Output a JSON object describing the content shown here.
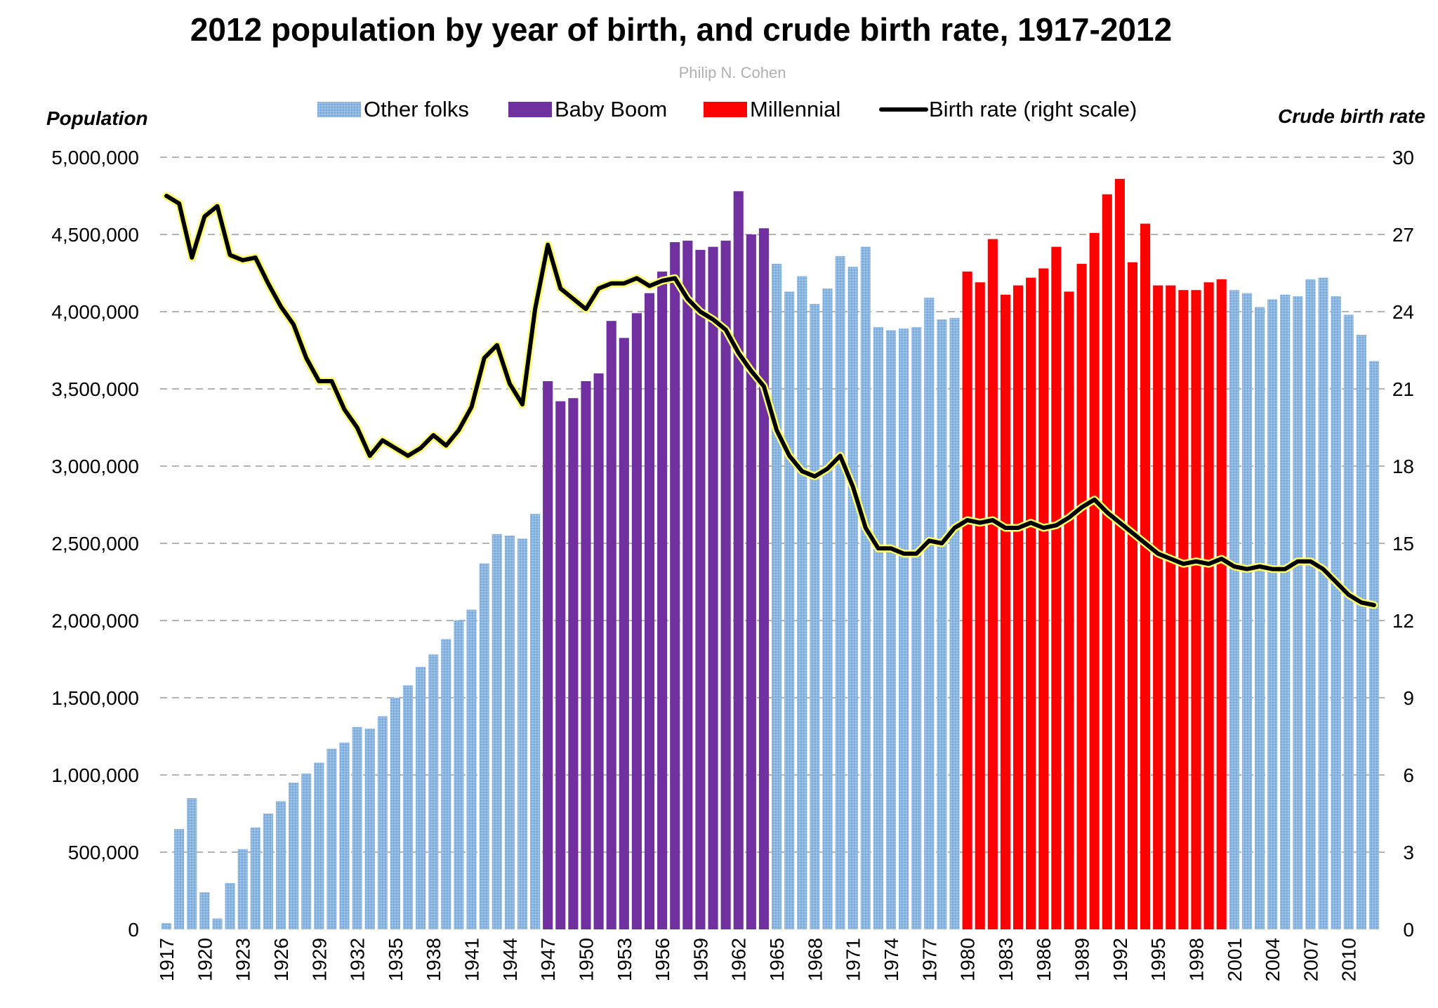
{
  "chart_data": {
    "type": "bar",
    "title": "2012 population by year of birth, and crude birth rate, 1917-2012",
    "subtitle": "Philip N. Cohen",
    "ylabel": "Population",
    "y2label": "Crude birth rate",
    "ylim": [
      0,
      5000000
    ],
    "y2lim": [
      0,
      30
    ],
    "yticks": [
      0,
      500000,
      1000000,
      1500000,
      2000000,
      2500000,
      3000000,
      3500000,
      4000000,
      4500000,
      5000000
    ],
    "ytick_labels": [
      "0",
      "500,000",
      "1,000,000",
      "1,500,000",
      "2,000,000",
      "2,500,000",
      "3,000,000",
      "3,500,000",
      "4,000,000",
      "4,500,000",
      "5,000,000"
    ],
    "y2ticks": [
      0,
      3,
      6,
      9,
      12,
      15,
      18,
      21,
      24,
      27,
      30
    ],
    "y2tick_labels": [
      "0",
      "3",
      "6",
      "9",
      "12",
      "15",
      "18",
      "21",
      "24",
      "27",
      "30"
    ],
    "grid": true,
    "legend_position": "top",
    "legend": [
      {
        "label": "Other folks",
        "kind": "bar",
        "color": "#8db8e2"
      },
      {
        "label": "Baby Boom",
        "kind": "bar",
        "color": "#7030a0"
      },
      {
        "label": "Millennial",
        "kind": "bar",
        "color": "#ff0000"
      },
      {
        "label": "Birth rate (right scale)",
        "kind": "line",
        "color": "#000000"
      }
    ],
    "group_colors": {
      "other": "#8db8e2",
      "boom": "#7030a0",
      "millennial": "#ff0000"
    },
    "years": [
      1917,
      1918,
      1919,
      1920,
      1921,
      1922,
      1923,
      1924,
      1925,
      1926,
      1927,
      1928,
      1929,
      1930,
      1931,
      1932,
      1933,
      1934,
      1935,
      1936,
      1937,
      1938,
      1939,
      1940,
      1941,
      1942,
      1943,
      1944,
      1945,
      1946,
      1947,
      1948,
      1949,
      1950,
      1951,
      1952,
      1953,
      1954,
      1955,
      1956,
      1957,
      1958,
      1959,
      1960,
      1961,
      1962,
      1963,
      1964,
      1965,
      1966,
      1967,
      1968,
      1969,
      1970,
      1971,
      1972,
      1973,
      1974,
      1975,
      1976,
      1977,
      1978,
      1979,
      1980,
      1981,
      1982,
      1983,
      1984,
      1985,
      1986,
      1987,
      1988,
      1989,
      1990,
      1991,
      1992,
      1993,
      1994,
      1995,
      1996,
      1997,
      1998,
      1999,
      2000,
      2001,
      2002,
      2003,
      2004,
      2005,
      2006,
      2007,
      2008,
      2009,
      2010,
      2011,
      2012
    ],
    "x_tick_labels": [
      "1917",
      "1920",
      "1923",
      "1926",
      "1929",
      "1932",
      "1935",
      "1938",
      "1941",
      "1944",
      "1947",
      "1950",
      "1953",
      "1956",
      "1959",
      "1962",
      "1965",
      "1968",
      "1971",
      "1974",
      "1977",
      "1980",
      "1983",
      "1986",
      "1989",
      "1992",
      "1995",
      "1998",
      "2001",
      "2004",
      "2007",
      "2010"
    ],
    "population": [
      40000,
      650000,
      850000,
      240000,
      70000,
      300000,
      520000,
      660000,
      750000,
      830000,
      950000,
      1010000,
      1080000,
      1170000,
      1210000,
      1310000,
      1300000,
      1380000,
      1500000,
      1580000,
      1700000,
      1780000,
      1880000,
      2000000,
      2070000,
      2370000,
      2560000,
      2550000,
      2530000,
      2690000,
      3550000,
      3420000,
      3440000,
      3550000,
      3600000,
      3940000,
      3830000,
      3990000,
      4120000,
      4260000,
      4450000,
      4460000,
      4400000,
      4420000,
      4460000,
      4780000,
      4500000,
      4540000,
      4310000,
      4130000,
      4230000,
      4050000,
      4150000,
      4360000,
      4290000,
      4420000,
      3900000,
      3880000,
      3890000,
      3900000,
      4090000,
      3950000,
      3960000,
      4260000,
      4190000,
      4470000,
      4110000,
      4170000,
      4220000,
      4280000,
      4420000,
      4130000,
      4310000,
      4510000,
      4760000,
      4860000,
      4320000,
      4570000,
      4170000,
      4170000,
      4140000,
      4140000,
      4190000,
      4210000,
      4140000,
      4120000,
      4030000,
      4080000,
      4110000,
      4100000,
      4210000,
      4220000,
      4100000,
      3980000,
      3850000,
      3680000
    ],
    "groups": [
      "other",
      "other",
      "other",
      "other",
      "other",
      "other",
      "other",
      "other",
      "other",
      "other",
      "other",
      "other",
      "other",
      "other",
      "other",
      "other",
      "other",
      "other",
      "other",
      "other",
      "other",
      "other",
      "other",
      "other",
      "other",
      "other",
      "other",
      "other",
      "other",
      "other",
      "boom",
      "boom",
      "boom",
      "boom",
      "boom",
      "boom",
      "boom",
      "boom",
      "boom",
      "boom",
      "boom",
      "boom",
      "boom",
      "boom",
      "boom",
      "boom",
      "boom",
      "boom",
      "other",
      "other",
      "other",
      "other",
      "other",
      "other",
      "other",
      "other",
      "other",
      "other",
      "other",
      "other",
      "other",
      "other",
      "other",
      "millennial",
      "millennial",
      "millennial",
      "millennial",
      "millennial",
      "millennial",
      "millennial",
      "millennial",
      "millennial",
      "millennial",
      "millennial",
      "millennial",
      "millennial",
      "millennial",
      "millennial",
      "millennial",
      "millennial",
      "millennial",
      "millennial",
      "millennial",
      "millennial",
      "other",
      "other",
      "other",
      "other",
      "other",
      "other",
      "other",
      "other",
      "other",
      "other",
      "other",
      "other"
    ],
    "birth_rate": [
      28.5,
      28.2,
      26.1,
      27.7,
      28.1,
      26.2,
      26.0,
      26.1,
      25.1,
      24.2,
      23.5,
      22.2,
      21.3,
      21.3,
      20.2,
      19.5,
      18.4,
      19.0,
      18.7,
      18.4,
      18.7,
      19.2,
      18.8,
      19.4,
      20.3,
      22.2,
      22.7,
      21.2,
      20.4,
      24.1,
      26.6,
      24.9,
      24.5,
      24.1,
      24.9,
      25.1,
      25.1,
      25.3,
      25.0,
      25.2,
      25.3,
      24.5,
      24.0,
      23.7,
      23.3,
      22.4,
      21.7,
      21.1,
      19.4,
      18.4,
      17.8,
      17.6,
      17.9,
      18.4,
      17.2,
      15.6,
      14.8,
      14.8,
      14.6,
      14.6,
      15.1,
      15.0,
      15.6,
      15.9,
      15.8,
      15.9,
      15.6,
      15.6,
      15.8,
      15.6,
      15.7,
      16.0,
      16.4,
      16.7,
      16.2,
      15.8,
      15.4,
      15.0,
      14.6,
      14.4,
      14.2,
      14.3,
      14.2,
      14.4,
      14.1,
      14.0,
      14.1,
      14.0,
      14.0,
      14.3,
      14.3,
      14.0,
      13.5,
      13.0,
      12.7,
      12.6
    ]
  }
}
